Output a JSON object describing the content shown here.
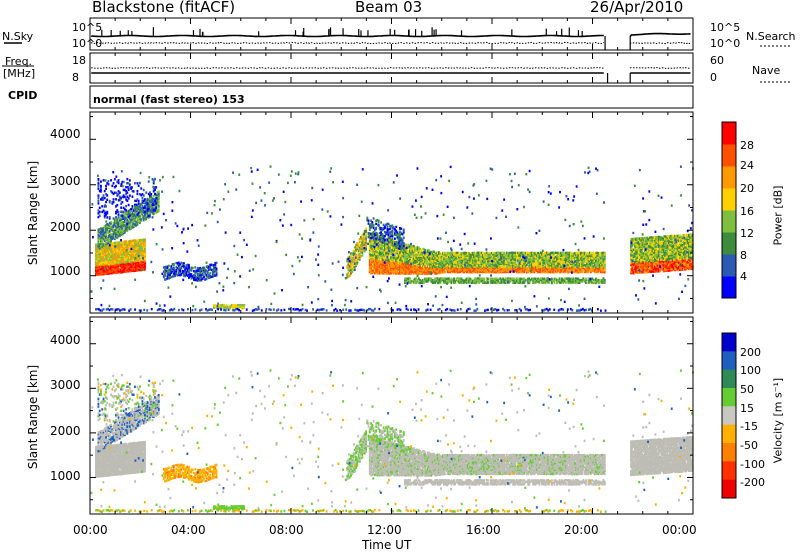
{
  "header": {
    "station": "Blackstone (fitACF)",
    "beam": "Beam 03",
    "date": "26/Apr/2010"
  },
  "summary": {
    "nsky_label": "N.Sky",
    "nsky_ticks": [
      "10^5",
      "10^0"
    ],
    "nsearch_label": "N.Search",
    "freq_label": "Freq.",
    "freq_unit": "[MHz]",
    "freq_ticks": [
      "18",
      "8"
    ],
    "nave_ticks": [
      "60",
      "0"
    ],
    "nave_label": "Nave",
    "cpid_label": "CPID",
    "cpid_value": "normal (fast stereo) 153"
  },
  "colors": {
    "power_scale": [
      "#0000ff",
      "#2a5ab4",
      "#3c8c3c",
      "#7fbf3f",
      "#ffd000",
      "#ff9900",
      "#ff5000",
      "#ff0000"
    ],
    "velocity_scale": [
      "#0000cc",
      "#1f5fbf",
      "#2e8b57",
      "#66cc33",
      "#c8c8c0",
      "#ffb000",
      "#ff7f00",
      "#ff3000",
      "#ee0000"
    ],
    "ground_scatter": "#bdbdb5"
  },
  "chart_data": [
    {
      "type": "heatmap",
      "title": "",
      "xlabel": "Time UT",
      "ylabel": "Slant Range [km]",
      "x_ticks": [
        "00:00",
        "04:00",
        "08:00",
        "12:00",
        "16:00",
        "20:00",
        "00:00"
      ],
      "y_ticks": [
        "1000",
        "2000",
        "3000",
        "4000"
      ],
      "xlim": [
        0,
        24
      ],
      "ylim": [
        180,
        4600
      ],
      "colorbar": {
        "label": "Power [dB]",
        "ticks": [
          "4",
          "8",
          "12",
          "16",
          "20",
          "24",
          "28"
        ]
      },
      "data_gaps_hours": [
        [
          20.5,
          21.5
        ]
      ],
      "regions": [
        {
          "t": [
            0.2,
            1.8
          ],
          "r": [
            900,
            1300
          ],
          "level": "high"
        },
        {
          "t": [
            0.2,
            2.6
          ],
          "r": [
            1300,
            2400
          ],
          "level": "mid"
        },
        {
          "t": [
            2.8,
            5.0
          ],
          "r": [
            900,
            1300
          ],
          "level": "low"
        },
        {
          "t": [
            10.3,
            11.0
          ],
          "r": [
            700,
            2000
          ],
          "level": "mid"
        },
        {
          "t": [
            11.2,
            20.5
          ],
          "r": [
            800,
            1700
          ],
          "level": "mid"
        },
        {
          "t": [
            21.5,
            24.0
          ],
          "r": [
            1000,
            1900
          ],
          "level": "mid"
        }
      ]
    },
    {
      "type": "heatmap",
      "title": "",
      "xlabel": "Time UT",
      "ylabel": "Slant Range [km]",
      "x_ticks": [
        "00:00",
        "04:00",
        "08:00",
        "12:00",
        "16:00",
        "20:00",
        "00:00"
      ],
      "y_ticks": [
        "1000",
        "2000",
        "3000",
        "4000"
      ],
      "xlim": [
        0,
        24
      ],
      "ylim": [
        180,
        4600
      ],
      "colorbar": {
        "label": "Velocity [m s⁻¹]",
        "ticks": [
          "200",
          "100",
          "50",
          "15",
          "-15",
          "-50",
          "-100",
          "-200"
        ]
      },
      "data_gaps_hours": [
        [
          20.5,
          21.5
        ]
      ]
    }
  ]
}
